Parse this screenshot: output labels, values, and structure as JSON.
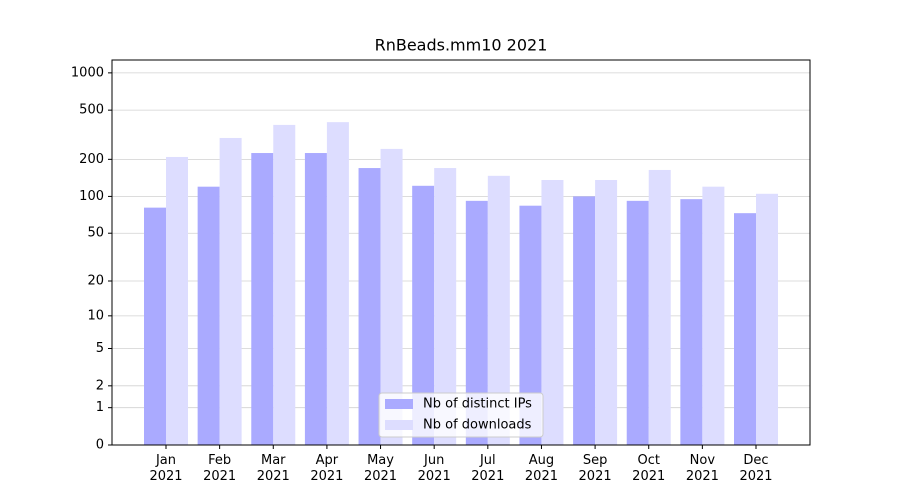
{
  "chart_data": {
    "type": "bar",
    "title": "RnBeads.mm10 2021",
    "categories": [
      "Jan\n2021",
      "Feb\n2021",
      "Mar\n2021",
      "Apr\n2021",
      "May\n2021",
      "Jun\n2021",
      "Jul\n2021",
      "Aug\n2021",
      "Sep\n2021",
      "Oct\n2021",
      "Nov\n2021",
      "Dec\n2021"
    ],
    "series": [
      {
        "name": "Nb of distinct IPs",
        "color": "#aaaaff",
        "values": [
          81,
          120,
          225,
          225,
          170,
          122,
          92,
          84,
          100,
          92,
          95,
          73
        ]
      },
      {
        "name": "Nb of downloads",
        "color": "#ddddff",
        "values": [
          209,
          298,
          380,
          400,
          243,
          170,
          147,
          136,
          136,
          164,
          120,
          105
        ]
      }
    ],
    "yscale": "log1p",
    "ylim": [
      0,
      1270
    ],
    "yticks": [
      0,
      1,
      2,
      5,
      10,
      20,
      50,
      100,
      200,
      500,
      1000
    ],
    "grid": true,
    "legend": "lower center"
  }
}
